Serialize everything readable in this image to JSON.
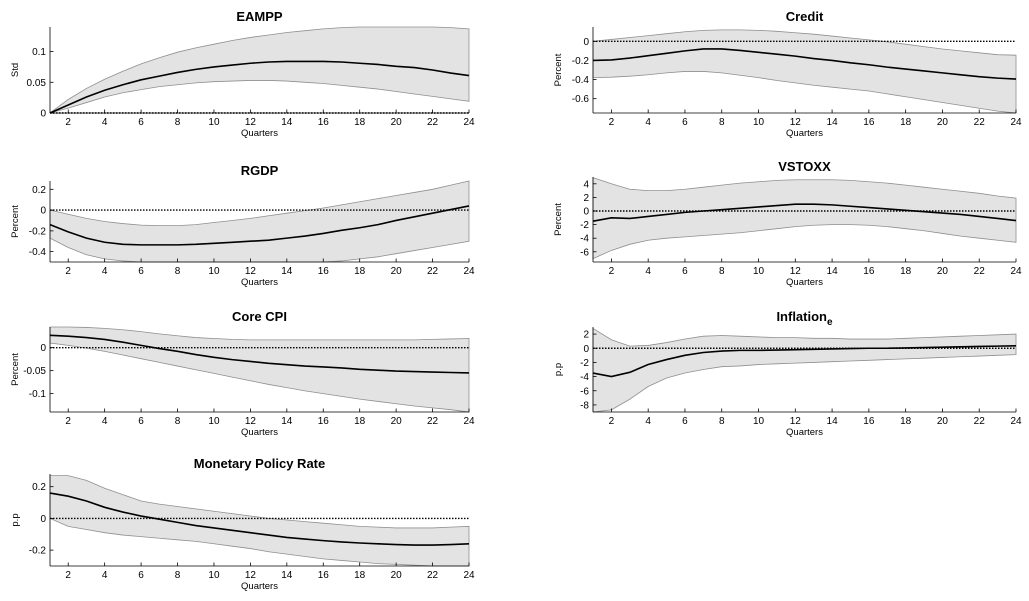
{
  "chart_data": [
    {
      "type": "area",
      "title": "EAMPP",
      "xlabel": "Quarters",
      "ylabel": "Std",
      "x": [
        1,
        2,
        3,
        4,
        5,
        6,
        7,
        8,
        9,
        10,
        11,
        12,
        13,
        14,
        15,
        16,
        17,
        18,
        19,
        20,
        21,
        22,
        23,
        24
      ],
      "xlim": [
        1,
        24
      ],
      "xticks": [
        "2",
        "4",
        "6",
        "8",
        "10",
        "12",
        "14",
        "16",
        "18",
        "20",
        "22",
        "24"
      ],
      "ylim": [
        0,
        0.14
      ],
      "yticks": [
        {
          "v": 0,
          "t": "0"
        },
        {
          "v": 0.05,
          "t": "0.05"
        },
        {
          "v": 0.1,
          "t": "0.1"
        }
      ],
      "series": [
        {
          "role": "response",
          "values": [
            0,
            0.013,
            0.026,
            0.037,
            0.046,
            0.054,
            0.06,
            0.066,
            0.071,
            0.075,
            0.078,
            0.081,
            0.083,
            0.084,
            0.084,
            0.084,
            0.083,
            0.081,
            0.079,
            0.076,
            0.074,
            0.07,
            0.065,
            0.061
          ]
        },
        {
          "role": "upper",
          "values": [
            0,
            0.022,
            0.04,
            0.055,
            0.068,
            0.08,
            0.09,
            0.099,
            0.106,
            0.112,
            0.118,
            0.123,
            0.127,
            0.131,
            0.134,
            0.137,
            0.139,
            0.14,
            0.141,
            0.141,
            0.141,
            0.14,
            0.139,
            0.137
          ]
        },
        {
          "role": "lower",
          "values": [
            0,
            0.008,
            0.017,
            0.026,
            0.033,
            0.038,
            0.043,
            0.046,
            0.049,
            0.051,
            0.052,
            0.053,
            0.053,
            0.052,
            0.05,
            0.048,
            0.045,
            0.042,
            0.039,
            0.035,
            0.031,
            0.027,
            0.023,
            0.019
          ]
        }
      ]
    },
    {
      "type": "area",
      "title": "Credit",
      "xlabel": "Quarters",
      "ylabel": "Percent",
      "x": [
        1,
        2,
        3,
        4,
        5,
        6,
        7,
        8,
        9,
        10,
        11,
        12,
        13,
        14,
        15,
        16,
        17,
        18,
        19,
        20,
        21,
        22,
        23,
        24
      ],
      "xlim": [
        1,
        24
      ],
      "xticks": [
        "2",
        "4",
        "6",
        "8",
        "10",
        "12",
        "14",
        "16",
        "18",
        "20",
        "22",
        "24"
      ],
      "ylim": [
        -0.75,
        0.15
      ],
      "yticks": [
        {
          "v": 0,
          "t": "0"
        },
        {
          "v": -0.2,
          "t": "-0.2"
        },
        {
          "v": -0.4,
          "t": "-0.4"
        },
        {
          "v": -0.6,
          "t": "-0.6"
        }
      ],
      "series": [
        {
          "role": "response",
          "values": [
            -0.2,
            -0.195,
            -0.175,
            -0.15,
            -0.125,
            -0.1,
            -0.08,
            -0.08,
            -0.095,
            -0.115,
            -0.135,
            -0.155,
            -0.18,
            -0.2,
            -0.225,
            -0.245,
            -0.27,
            -0.29,
            -0.31,
            -0.33,
            -0.35,
            -0.37,
            -0.385,
            -0.395
          ]
        },
        {
          "role": "upper",
          "values": [
            0,
            0.02,
            0.04,
            0.06,
            0.08,
            0.1,
            0.115,
            0.12,
            0.12,
            0.115,
            0.105,
            0.09,
            0.075,
            0.055,
            0.035,
            0.015,
            -0.005,
            -0.03,
            -0.055,
            -0.08,
            -0.1,
            -0.12,
            -0.14,
            -0.145
          ]
        },
        {
          "role": "lower",
          "values": [
            -0.38,
            -0.375,
            -0.365,
            -0.35,
            -0.33,
            -0.315,
            -0.315,
            -0.33,
            -0.355,
            -0.38,
            -0.41,
            -0.435,
            -0.46,
            -0.48,
            -0.5,
            -0.52,
            -0.55,
            -0.58,
            -0.61,
            -0.64,
            -0.67,
            -0.7,
            -0.73,
            -0.75
          ]
        }
      ]
    },
    {
      "type": "area",
      "title": "RGDP",
      "xlabel": "Quarters",
      "ylabel": "Percent",
      "x": [
        1,
        2,
        3,
        4,
        5,
        6,
        7,
        8,
        9,
        10,
        11,
        12,
        13,
        14,
        15,
        16,
        17,
        18,
        19,
        20,
        21,
        22,
        23,
        24
      ],
      "xlim": [
        1,
        24
      ],
      "xticks": [
        "2",
        "4",
        "6",
        "8",
        "10",
        "12",
        "14",
        "16",
        "18",
        "20",
        "22",
        "24"
      ],
      "ylim": [
        -0.5,
        0.28
      ],
      "yticks": [
        {
          "v": 0.2,
          "t": "0.2"
        },
        {
          "v": 0,
          "t": "0"
        },
        {
          "v": -0.2,
          "t": "-0.2"
        },
        {
          "v": -0.4,
          "t": "-0.4"
        }
      ],
      "series": [
        {
          "role": "response",
          "values": [
            -0.14,
            -0.21,
            -0.27,
            -0.31,
            -0.33,
            -0.335,
            -0.335,
            -0.335,
            -0.33,
            -0.32,
            -0.31,
            -0.3,
            -0.29,
            -0.27,
            -0.25,
            -0.225,
            -0.195,
            -0.17,
            -0.14,
            -0.1,
            -0.065,
            -0.03,
            0.005,
            0.04
          ]
        },
        {
          "role": "upper",
          "values": [
            0,
            -0.04,
            -0.08,
            -0.11,
            -0.13,
            -0.145,
            -0.15,
            -0.15,
            -0.14,
            -0.12,
            -0.1,
            -0.08,
            -0.055,
            -0.03,
            -0.005,
            0.02,
            0.05,
            0.08,
            0.11,
            0.14,
            0.17,
            0.2,
            0.24,
            0.28
          ]
        },
        {
          "role": "lower",
          "values": [
            -0.27,
            -0.36,
            -0.43,
            -0.47,
            -0.49,
            -0.5,
            -0.5,
            -0.5,
            -0.5,
            -0.5,
            -0.5,
            -0.5,
            -0.5,
            -0.5,
            -0.5,
            -0.5,
            -0.49,
            -0.47,
            -0.45,
            -0.42,
            -0.39,
            -0.36,
            -0.33,
            -0.3
          ]
        }
      ]
    },
    {
      "type": "area",
      "title": "VSTOXX",
      "xlabel": "Quarters",
      "ylabel": "Percent",
      "x": [
        1,
        2,
        3,
        4,
        5,
        6,
        7,
        8,
        9,
        10,
        11,
        12,
        13,
        14,
        15,
        16,
        17,
        18,
        19,
        20,
        21,
        22,
        23,
        24
      ],
      "xlim": [
        1,
        24
      ],
      "xticks": [
        "2",
        "4",
        "6",
        "8",
        "10",
        "12",
        "14",
        "16",
        "18",
        "20",
        "22",
        "24"
      ],
      "ylim": [
        -7.5,
        5
      ],
      "yticks": [
        {
          "v": 4,
          "t": "4"
        },
        {
          "v": 2,
          "t": "2"
        },
        {
          "v": 0,
          "t": "0"
        },
        {
          "v": -2,
          "t": "-2"
        },
        {
          "v": -4,
          "t": "-4"
        },
        {
          "v": -6,
          "t": "-6"
        }
      ],
      "series": [
        {
          "role": "response",
          "values": [
            -1.5,
            -1,
            -1.1,
            -0.8,
            -0.5,
            -0.2,
            0,
            0.2,
            0.4,
            0.6,
            0.8,
            1,
            1,
            0.9,
            0.7,
            0.5,
            0.3,
            0.1,
            -0.1,
            -0.3,
            -0.5,
            -0.8,
            -1.1,
            -1.4
          ]
        },
        {
          "role": "upper",
          "values": [
            4.9,
            4,
            3.2,
            3,
            3,
            3.2,
            3.5,
            3.8,
            4.1,
            4.3,
            4.5,
            4.6,
            4.6,
            4.6,
            4.5,
            4.3,
            4.1,
            3.8,
            3.5,
            3.2,
            2.9,
            2.6,
            2.2,
            1.9
          ]
        },
        {
          "role": "lower",
          "values": [
            -7,
            -5.8,
            -4.9,
            -4.3,
            -4,
            -3.8,
            -3.6,
            -3.4,
            -3.2,
            -2.9,
            -2.6,
            -2.3,
            -2.1,
            -2,
            -2,
            -2.1,
            -2.3,
            -2.6,
            -2.9,
            -3.3,
            -3.7,
            -4,
            -4.3,
            -4.6
          ]
        }
      ]
    },
    {
      "type": "area",
      "title": "Core CPI",
      "xlabel": "Quarters",
      "ylabel": "Percent",
      "x": [
        1,
        2,
        3,
        4,
        5,
        6,
        7,
        8,
        9,
        10,
        11,
        12,
        13,
        14,
        15,
        16,
        17,
        18,
        19,
        20,
        21,
        22,
        23,
        24
      ],
      "xlim": [
        1,
        24
      ],
      "xticks": [
        "2",
        "4",
        "6",
        "8",
        "10",
        "12",
        "14",
        "16",
        "18",
        "20",
        "22",
        "24"
      ],
      "ylim": [
        -0.14,
        0.045
      ],
      "yticks": [
        {
          "v": 0,
          "t": "0"
        },
        {
          "v": -0.05,
          "t": "-0.05"
        },
        {
          "v": -0.1,
          "t": "-0.1"
        }
      ],
      "series": [
        {
          "role": "response",
          "values": [
            0.027,
            0.025,
            0.022,
            0.018,
            0.012,
            0.005,
            -0.002,
            -0.008,
            -0.015,
            -0.021,
            -0.026,
            -0.03,
            -0.034,
            -0.037,
            -0.04,
            -0.042,
            -0.044,
            -0.047,
            -0.049,
            -0.051,
            -0.052,
            -0.053,
            -0.054,
            -0.055
          ]
        },
        {
          "role": "upper",
          "values": [
            0.045,
            0.045,
            0.044,
            0.042,
            0.039,
            0.035,
            0.03,
            0.026,
            0.022,
            0.02,
            0.018,
            0.017,
            0.017,
            0.017,
            0.017,
            0.017,
            0.017,
            0.017,
            0.017,
            0.017,
            0.017,
            0.018,
            0.019,
            0.02
          ]
        },
        {
          "role": "lower",
          "values": [
            0.01,
            0.005,
            -0.001,
            -0.008,
            -0.016,
            -0.024,
            -0.032,
            -0.04,
            -0.048,
            -0.056,
            -0.064,
            -0.072,
            -0.08,
            -0.087,
            -0.094,
            -0.1,
            -0.106,
            -0.112,
            -0.117,
            -0.122,
            -0.127,
            -0.131,
            -0.135,
            -0.14
          ]
        }
      ]
    },
    {
      "type": "area",
      "title": "Inflation",
      "title_subscript": "e",
      "xlabel": "Quarters",
      "ylabel": "p.p",
      "x": [
        1,
        2,
        3,
        4,
        5,
        6,
        7,
        8,
        9,
        10,
        11,
        12,
        13,
        14,
        15,
        16,
        17,
        18,
        19,
        20,
        21,
        22,
        23,
        24
      ],
      "xlim": [
        1,
        24
      ],
      "xticks": [
        "2",
        "4",
        "6",
        "8",
        "10",
        "12",
        "14",
        "16",
        "18",
        "20",
        "22",
        "24"
      ],
      "ylim": [
        -9,
        3
      ],
      "yticks": [
        {
          "v": 2,
          "t": "2"
        },
        {
          "v": 0,
          "t": "0"
        },
        {
          "v": -2,
          "t": "-2"
        },
        {
          "v": -4,
          "t": "-4"
        },
        {
          "v": -6,
          "t": "-6"
        },
        {
          "v": -8,
          "t": "-8"
        }
      ],
      "series": [
        {
          "role": "response",
          "values": [
            -3.5,
            -4,
            -3.4,
            -2.3,
            -1.6,
            -1,
            -0.6,
            -0.4,
            -0.3,
            -0.3,
            -0.25,
            -0.2,
            -0.15,
            -0.1,
            -0.05,
            0,
            0,
            0.05,
            0.1,
            0.15,
            0.2,
            0.25,
            0.3,
            0.35
          ]
        },
        {
          "role": "upper",
          "values": [
            2.8,
            1.2,
            0.3,
            0.4,
            0.8,
            1.3,
            1.7,
            1.8,
            1.7,
            1.6,
            1.5,
            1.5,
            1.4,
            1.4,
            1.3,
            1.3,
            1.3,
            1.4,
            1.5,
            1.6,
            1.7,
            1.8,
            1.9,
            2
          ]
        },
        {
          "role": "lower",
          "values": [
            -9,
            -8.7,
            -7.2,
            -5.4,
            -4.2,
            -3.5,
            -3,
            -2.6,
            -2.5,
            -2.3,
            -2.2,
            -2.1,
            -2,
            -1.9,
            -1.8,
            -1.7,
            -1.6,
            -1.5,
            -1.4,
            -1.3,
            -1.2,
            -1.1,
            -1,
            -0.9
          ]
        }
      ]
    },
    {
      "type": "area",
      "title": "Monetary Policy Rate",
      "xlabel": "Quarters",
      "ylabel": "p.p",
      "x": [
        1,
        2,
        3,
        4,
        5,
        6,
        7,
        8,
        9,
        10,
        11,
        12,
        13,
        14,
        15,
        16,
        17,
        18,
        19,
        20,
        21,
        22,
        23,
        24
      ],
      "xlim": [
        1,
        24
      ],
      "xticks": [
        "2",
        "4",
        "6",
        "8",
        "10",
        "12",
        "14",
        "16",
        "18",
        "20",
        "22",
        "24"
      ],
      "ylim": [
        -0.3,
        0.28
      ],
      "yticks": [
        {
          "v": 0.2,
          "t": "0.2"
        },
        {
          "v": 0,
          "t": "0"
        },
        {
          "v": -0.2,
          "t": "-0.2"
        }
      ],
      "series": [
        {
          "role": "response",
          "values": [
            0.16,
            0.14,
            0.11,
            0.07,
            0.04,
            0.015,
            -0.005,
            -0.025,
            -0.045,
            -0.06,
            -0.075,
            -0.09,
            -0.105,
            -0.12,
            -0.13,
            -0.14,
            -0.148,
            -0.155,
            -0.16,
            -0.165,
            -0.168,
            -0.168,
            -0.165,
            -0.16
          ]
        },
        {
          "role": "upper",
          "values": [
            0.27,
            0.27,
            0.24,
            0.19,
            0.15,
            0.11,
            0.09,
            0.075,
            0.06,
            0.045,
            0.03,
            0.015,
            0,
            -0.01,
            -0.02,
            -0.03,
            -0.04,
            -0.05,
            -0.055,
            -0.06,
            -0.06,
            -0.06,
            -0.055,
            -0.05
          ]
        },
        {
          "role": "lower",
          "values": [
            0,
            -0.05,
            -0.07,
            -0.09,
            -0.105,
            -0.115,
            -0.125,
            -0.135,
            -0.145,
            -0.16,
            -0.175,
            -0.19,
            -0.21,
            -0.225,
            -0.24,
            -0.255,
            -0.265,
            -0.275,
            -0.285,
            -0.29,
            -0.295,
            -0.3,
            -0.3,
            -0.3
          ]
        }
      ]
    }
  ]
}
